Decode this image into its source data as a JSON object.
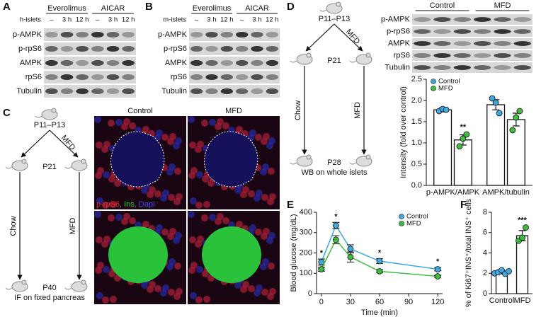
{
  "panels": {
    "A": {
      "label": "A",
      "groups": [
        "Everolimus",
        "AICAR"
      ],
      "sample": "h-islets",
      "lanes": [
        "–",
        "3 h",
        "12 h",
        "–",
        "3 h",
        "12 h"
      ],
      "bands": [
        "p-AMPK",
        "p-rpS6",
        "AMPK",
        "rpS6",
        "Tubulin"
      ]
    },
    "B": {
      "label": "B",
      "groups": [
        "Everolimus",
        "AICAR"
      ],
      "sample": "m-islets",
      "lanes": [
        "–",
        "3 h",
        "12 h",
        "–",
        "3 h",
        "12 h"
      ],
      "bands": [
        "p-AMPK",
        "p-rpS6",
        "AMPK",
        "rpS6",
        "Tubulin"
      ]
    },
    "C": {
      "label": "C",
      "tree": {
        "start": "P11–P13",
        "mid": "P21",
        "end": "P40",
        "left": "Chow",
        "right": "MFD",
        "diet": "MFD",
        "caption": "IF on fixed pancreas"
      },
      "columns": [
        "Control",
        "MFD"
      ],
      "stains": [
        "p-rpS6",
        ", Ins",
        ", Dapi"
      ]
    },
    "D": {
      "label": "D",
      "tree": {
        "start": "P11–P13",
        "mid": "P21",
        "end": "P28",
        "left": "Chow",
        "right": "MFD",
        "diet": "MFD",
        "caption": "WB on whole islets"
      },
      "columns": [
        "Control",
        "MFD"
      ],
      "bands": [
        "p-AMPK",
        "p-rpS6",
        "AMPK",
        "rpS6",
        "Tubulin"
      ]
    },
    "E": {
      "label": "E"
    },
    "F": {
      "label": "F"
    }
  },
  "chart_data": [
    {
      "type": "bar",
      "ylabel": "Intensity (fold over control)",
      "categories": [
        "p-AMPK/AMPK",
        "AMPK/tubulin"
      ],
      "series": [
        {
          "name": "Control",
          "color": "#3fa9dd",
          "values": [
            1.78,
            1.9
          ],
          "errors": [
            0.05,
            0.12
          ],
          "points": [
            [
              1.75,
              1.8,
              1.78
            ],
            [
              2.05,
              1.95,
              1.7
            ]
          ]
        },
        {
          "name": "MFD",
          "color": "#3dbd3d",
          "values": [
            1.07,
            1.55
          ],
          "errors": [
            0.12,
            0.15
          ],
          "points": [
            [
              0.92,
              1.1,
              1.2
            ],
            [
              1.3,
              1.6,
              1.75
            ]
          ]
        }
      ],
      "ylim": [
        0,
        2.5
      ],
      "yticks": [
        {
          "value": 0,
          "label": "0.0"
        },
        0.5,
        {
          "value": 1,
          "label": "1.0"
        },
        1.5,
        {
          "value": 2,
          "label": "2.0"
        },
        2.5
      ],
      "annotations": [
        {
          "text": "**",
          "x": 0
        }
      ],
      "legend": "upper-left"
    },
    {
      "type": "line",
      "ylabel": "Blood glucose (mg/dL)",
      "xlabel": "Time (min)",
      "x": [
        0,
        15,
        30,
        60,
        120
      ],
      "series": [
        {
          "name": "Control",
          "color": "#3fa9dd",
          "values": [
            155,
            335,
            220,
            160,
            120
          ],
          "errors": [
            15,
            15,
            20,
            12,
            8
          ]
        },
        {
          "name": "MFD",
          "color": "#3dbd3d",
          "values": [
            120,
            265,
            180,
            110,
            85
          ],
          "errors": [
            10,
            20,
            25,
            8,
            5
          ]
        }
      ],
      "xlim": [
        -5,
        125
      ],
      "xticks": [
        0,
        30,
        60,
        90,
        120
      ],
      "ylim": [
        0,
        400
      ],
      "yticks": [
        0,
        100,
        200,
        300,
        400
      ],
      "annotations": [
        {
          "text": "*",
          "x": 0
        },
        {
          "text": "*",
          "x": 15
        },
        {
          "text": "*",
          "x": 60
        },
        {
          "text": "*",
          "x": 120
        }
      ],
      "legend": "upper-right"
    },
    {
      "type": "bar",
      "ylabel": "% of Ki67⁺INS⁺/total INS⁺ cells",
      "categories": [
        "Control",
        "MFD"
      ],
      "values": [
        2.1,
        5.7
      ],
      "errors": [
        0.15,
        0.5
      ],
      "colors": [
        "#3fa9dd",
        "#3dbd3d"
      ],
      "points": [
        [
          2.0,
          2.1,
          2.3,
          1.95,
          2.2
        ],
        [
          5.2,
          5.5,
          6.5
        ]
      ],
      "ylim": [
        0,
        8
      ],
      "yticks": [
        0,
        2,
        4,
        6,
        8
      ],
      "annotations": [
        {
          "text": "***",
          "x": 1
        }
      ]
    }
  ]
}
